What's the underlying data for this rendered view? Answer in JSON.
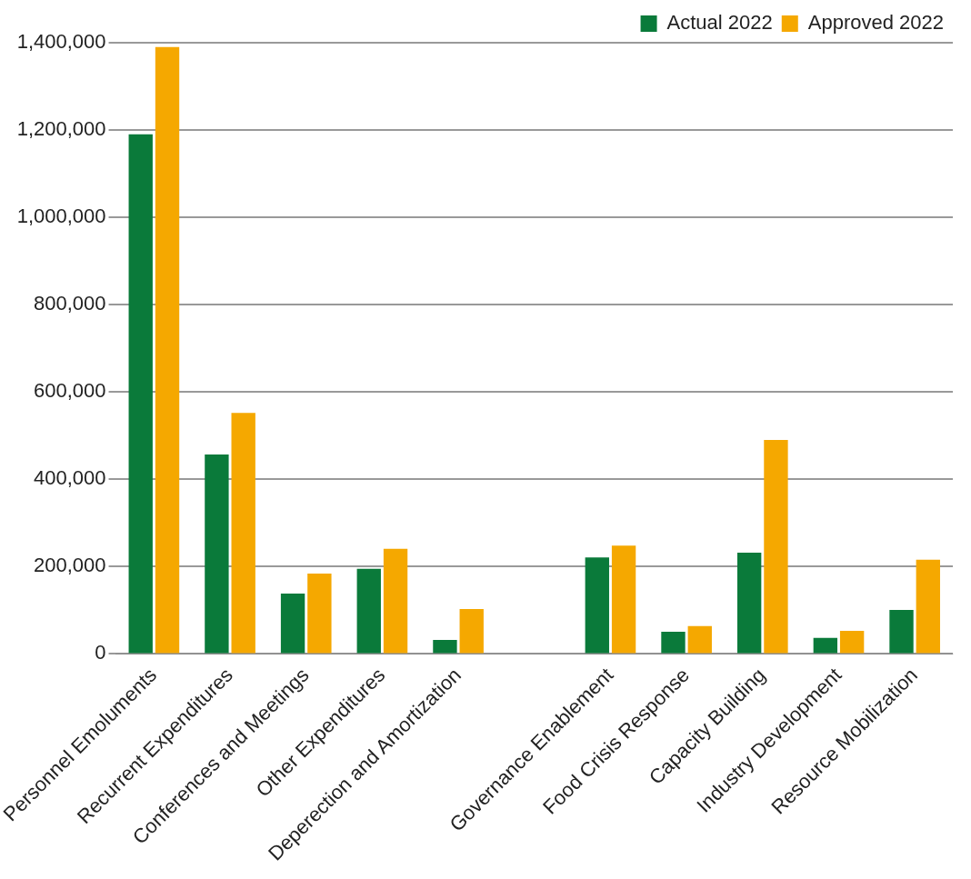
{
  "chart_data": {
    "type": "bar",
    "categories": [
      "Personnel Emoluments",
      "Recurrent Expenditures",
      "Conferences and Meetings",
      "Other Expenditures",
      "Deperection and Amortization",
      null,
      "Governance Enablement",
      "Food Crisis Response",
      "Capacity Building",
      "Industry Development",
      "Resource Mobilization"
    ],
    "series": [
      {
        "name": "Actual 2022",
        "color": "#0a7a3a",
        "values": [
          1190000,
          457000,
          138000,
          195000,
          32000,
          null,
          221000,
          51000,
          232000,
          37000,
          101000
        ]
      },
      {
        "name": "Approved 2022",
        "color": "#f5a800",
        "values": [
          1390000,
          552000,
          184000,
          241000,
          103000,
          null,
          248000,
          64000,
          490000,
          53000,
          216000
        ]
      }
    ],
    "ylim": [
      0,
      1400000
    ],
    "yticks": [
      0,
      {
        "value": 200000,
        "label": "200,000"
      },
      {
        "value": 400000,
        "label": "400,000"
      },
      {
        "value": 600000,
        "label": "600,000"
      },
      {
        "value": 800000,
        "label": "800,000"
      },
      {
        "value": 1000000,
        "label": "1,000,000"
      },
      {
        "value": 1200000,
        "label": "1,200,000"
      },
      {
        "value": 1400000,
        "label": "1,400,000"
      }
    ],
    "grid": "y",
    "legend": "top right"
  }
}
